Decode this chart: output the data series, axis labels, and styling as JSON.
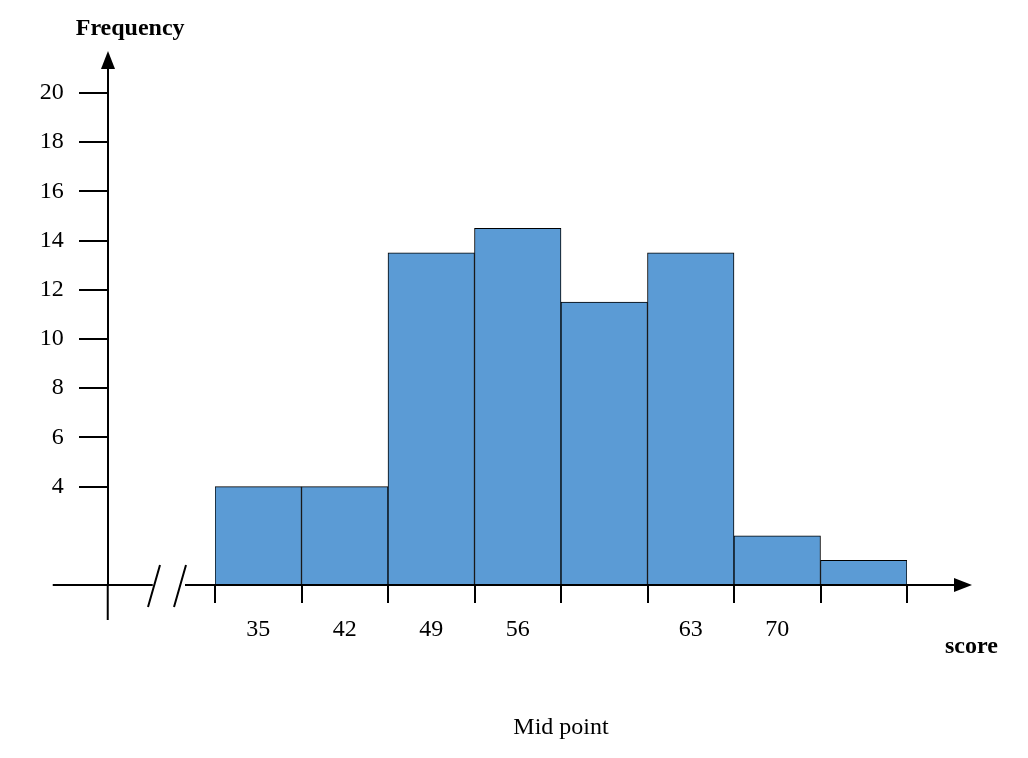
{
  "chart_data": {
    "type": "bar",
    "xlabel": "score",
    "ylabel": "Frequency",
    "annotations": [
      "Mid point"
    ],
    "categories": [
      "35",
      "42",
      "49",
      "56",
      null,
      "63",
      "70",
      null
    ],
    "values": [
      4,
      4,
      13.5,
      14.5,
      11.5,
      13.5,
      2,
      1
    ],
    "color": "#5b9bd5",
    "ylim": [
      0,
      21
    ],
    "yticks": [
      4,
      6,
      8,
      10,
      12,
      14,
      16,
      18,
      20
    ],
    "grid": false,
    "legend": false
  }
}
